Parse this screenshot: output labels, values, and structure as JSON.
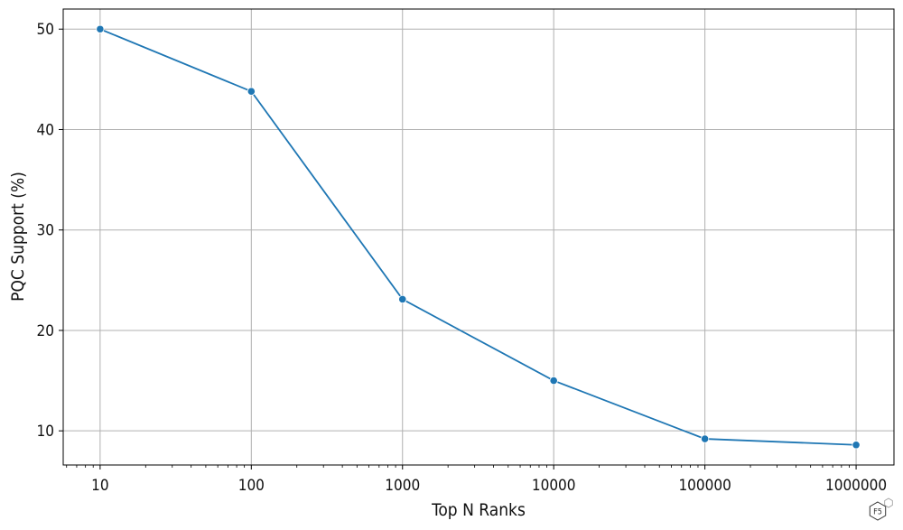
{
  "chart_data": {
    "type": "line",
    "title": "",
    "xlabel": "Top N Ranks",
    "ylabel": "PQC Support (%)",
    "x_scale": "log",
    "x": [
      10,
      100,
      1000,
      10000,
      100000,
      1000000
    ],
    "x_tick_labels": [
      "10",
      "100",
      "1000",
      "10000",
      "100000",
      "1000000"
    ],
    "series": [
      {
        "values": [
          50.0,
          43.8,
          23.1,
          15.0,
          9.2,
          8.6
        ],
        "color": "#1f77b4",
        "marker": "circle"
      }
    ],
    "y_ticks": [
      10,
      20,
      30,
      40,
      50
    ],
    "y_tick_labels": [
      "10",
      "20",
      "30",
      "40",
      "50"
    ],
    "xlim": [
      5.7,
      1780000
    ],
    "ylim": [
      6.6,
      52.0
    ],
    "grid": true
  },
  "logo": {
    "text": "F5",
    "badge": "labs"
  }
}
